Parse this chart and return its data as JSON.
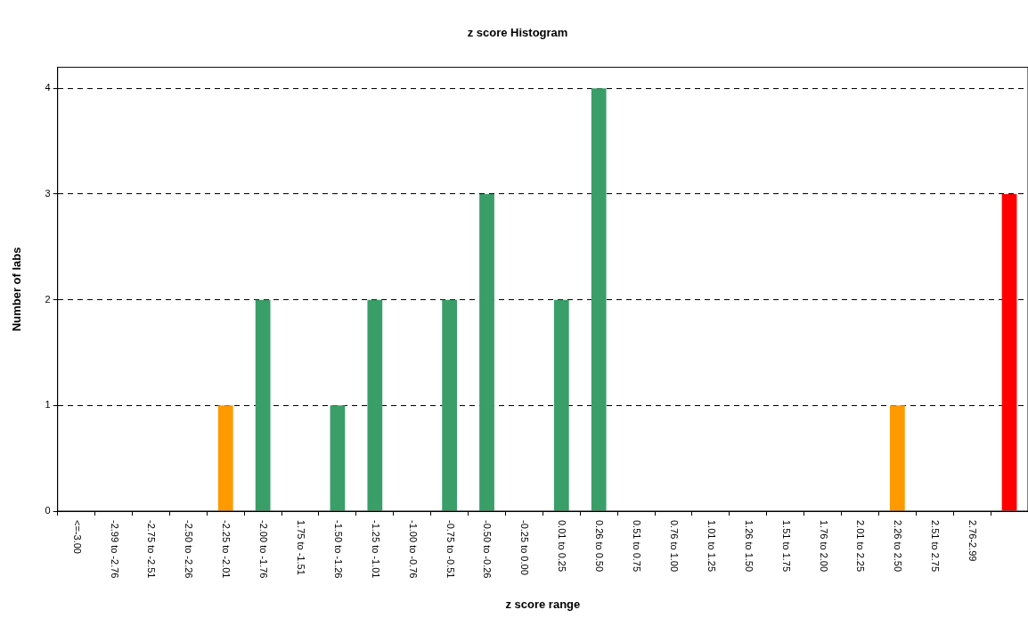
{
  "chart_data": {
    "type": "bar",
    "title": "z score Histogram",
    "xlabel": "z score range",
    "ylabel": "Number of labs",
    "categories": [
      "<=-3.00",
      "-2.99 to -2.76",
      "-2.75 to -2.51",
      "-2.50 to -2.26",
      "-2.25 to -2.01",
      "-2.00 to -1.76",
      "1.75 to -1.51",
      "-1.50 to -1.26",
      "-1.25 to -1.01",
      "-1.00 to -0.76",
      "-0.75 to -0.51",
      "-0.50 to -0.26",
      "-0.25 to 0.00",
      "0.01 to 0.25",
      "0.26 to 0.50",
      "0.51 to 0.75",
      "0.76 to 1.00",
      "1.01 to 1.25",
      "1.26 to 1.50",
      "1.51 to 1.75",
      "1.76 to 2.00",
      "2.01 to 2.25",
      "2.26 to 2.50",
      "2.51 to 2.75",
      "2.76-2.99",
      null
    ],
    "values": [
      0,
      0,
      0,
      0,
      1,
      2,
      0,
      1,
      2,
      0,
      2,
      3,
      0,
      2,
      4,
      0,
      0,
      0,
      0,
      0,
      0,
      0,
      1,
      0,
      0,
      3
    ],
    "colors": [
      "#3a9e69",
      "#3a9e69",
      "#3a9e69",
      "#3a9e69",
      "#ff9900",
      "#3a9e69",
      "#3a9e69",
      "#3a9e69",
      "#3a9e69",
      "#3a9e69",
      "#3a9e69",
      "#3a9e69",
      "#3a9e69",
      "#3a9e69",
      "#3a9e69",
      "#3a9e69",
      "#3a9e69",
      "#3a9e69",
      "#3a9e69",
      "#3a9e69",
      "#3a9e69",
      "#3a9e69",
      "#ff9900",
      "#3a9e69",
      "#3a9e69",
      "#ff0000"
    ],
    "ylim": [
      0,
      4.2
    ],
    "yticks": [
      0,
      1,
      2,
      3,
      4
    ],
    "grid": "y"
  }
}
